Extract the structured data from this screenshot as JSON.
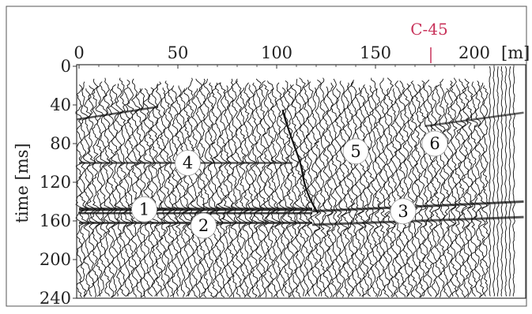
{
  "x_axis": {
    "unit": "[m]",
    "ticks": [
      "0",
      "50",
      "100",
      "150",
      "200"
    ],
    "values": [
      0,
      50,
      100,
      150,
      200
    ]
  },
  "y_axis": {
    "title": "time [ms]",
    "ticks": [
      "0",
      "40",
      "80",
      "120",
      "160",
      "200",
      "240"
    ],
    "values": [
      0,
      40,
      80,
      120,
      160,
      200,
      240
    ]
  },
  "marker": {
    "label": "C-45",
    "position_m": 178,
    "color": "#c8325a"
  },
  "callouts": [
    {
      "id": "1",
      "x_m": 33,
      "t_ms": 148
    },
    {
      "id": "2",
      "x_m": 63,
      "t_ms": 165
    },
    {
      "id": "3",
      "x_m": 164,
      "t_ms": 150
    },
    {
      "id": "4",
      "x_m": 55,
      "t_ms": 100
    },
    {
      "id": "5",
      "x_m": 140,
      "t_ms": 88
    },
    {
      "id": "6",
      "x_m": 180,
      "t_ms": 80
    }
  ],
  "colors": {
    "trace": "#111111",
    "frame": "#333333",
    "background": "#ffffff",
    "callout_fill": "#ffffff"
  }
}
